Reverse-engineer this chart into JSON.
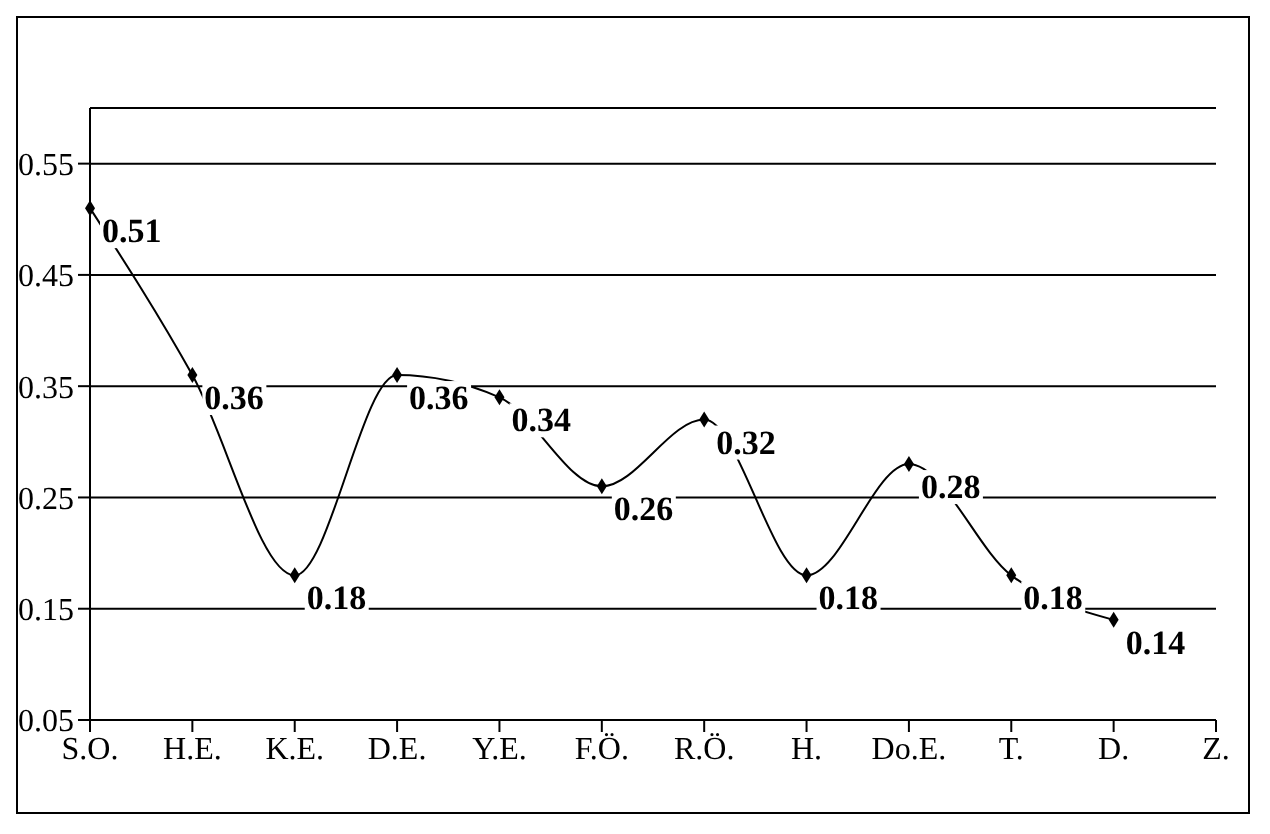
{
  "chart_data": {
    "type": "line",
    "categories": [
      "S.O.",
      "H.E.",
      "K.E.",
      "D.E.",
      "Y.E.",
      "F.Ö.",
      "R.Ö.",
      "H.",
      "Do.E.",
      "T.",
      "D.",
      "Z."
    ],
    "series": [
      {
        "color": "#000000",
        "values": [
          0.51,
          0.36,
          0.18,
          0.36,
          0.34,
          0.26,
          0.32,
          0.18,
          0.28,
          0.18,
          0.14,
          null
        ]
      }
    ],
    "ylim": [
      0.05,
      0.6
    ],
    "yticks": [
      0.05,
      0.15,
      0.25,
      0.35,
      0.45,
      0.55
    ],
    "grid": "y",
    "marker": "diamond",
    "line_style": "solid",
    "data_labels": true,
    "legend": false
  }
}
